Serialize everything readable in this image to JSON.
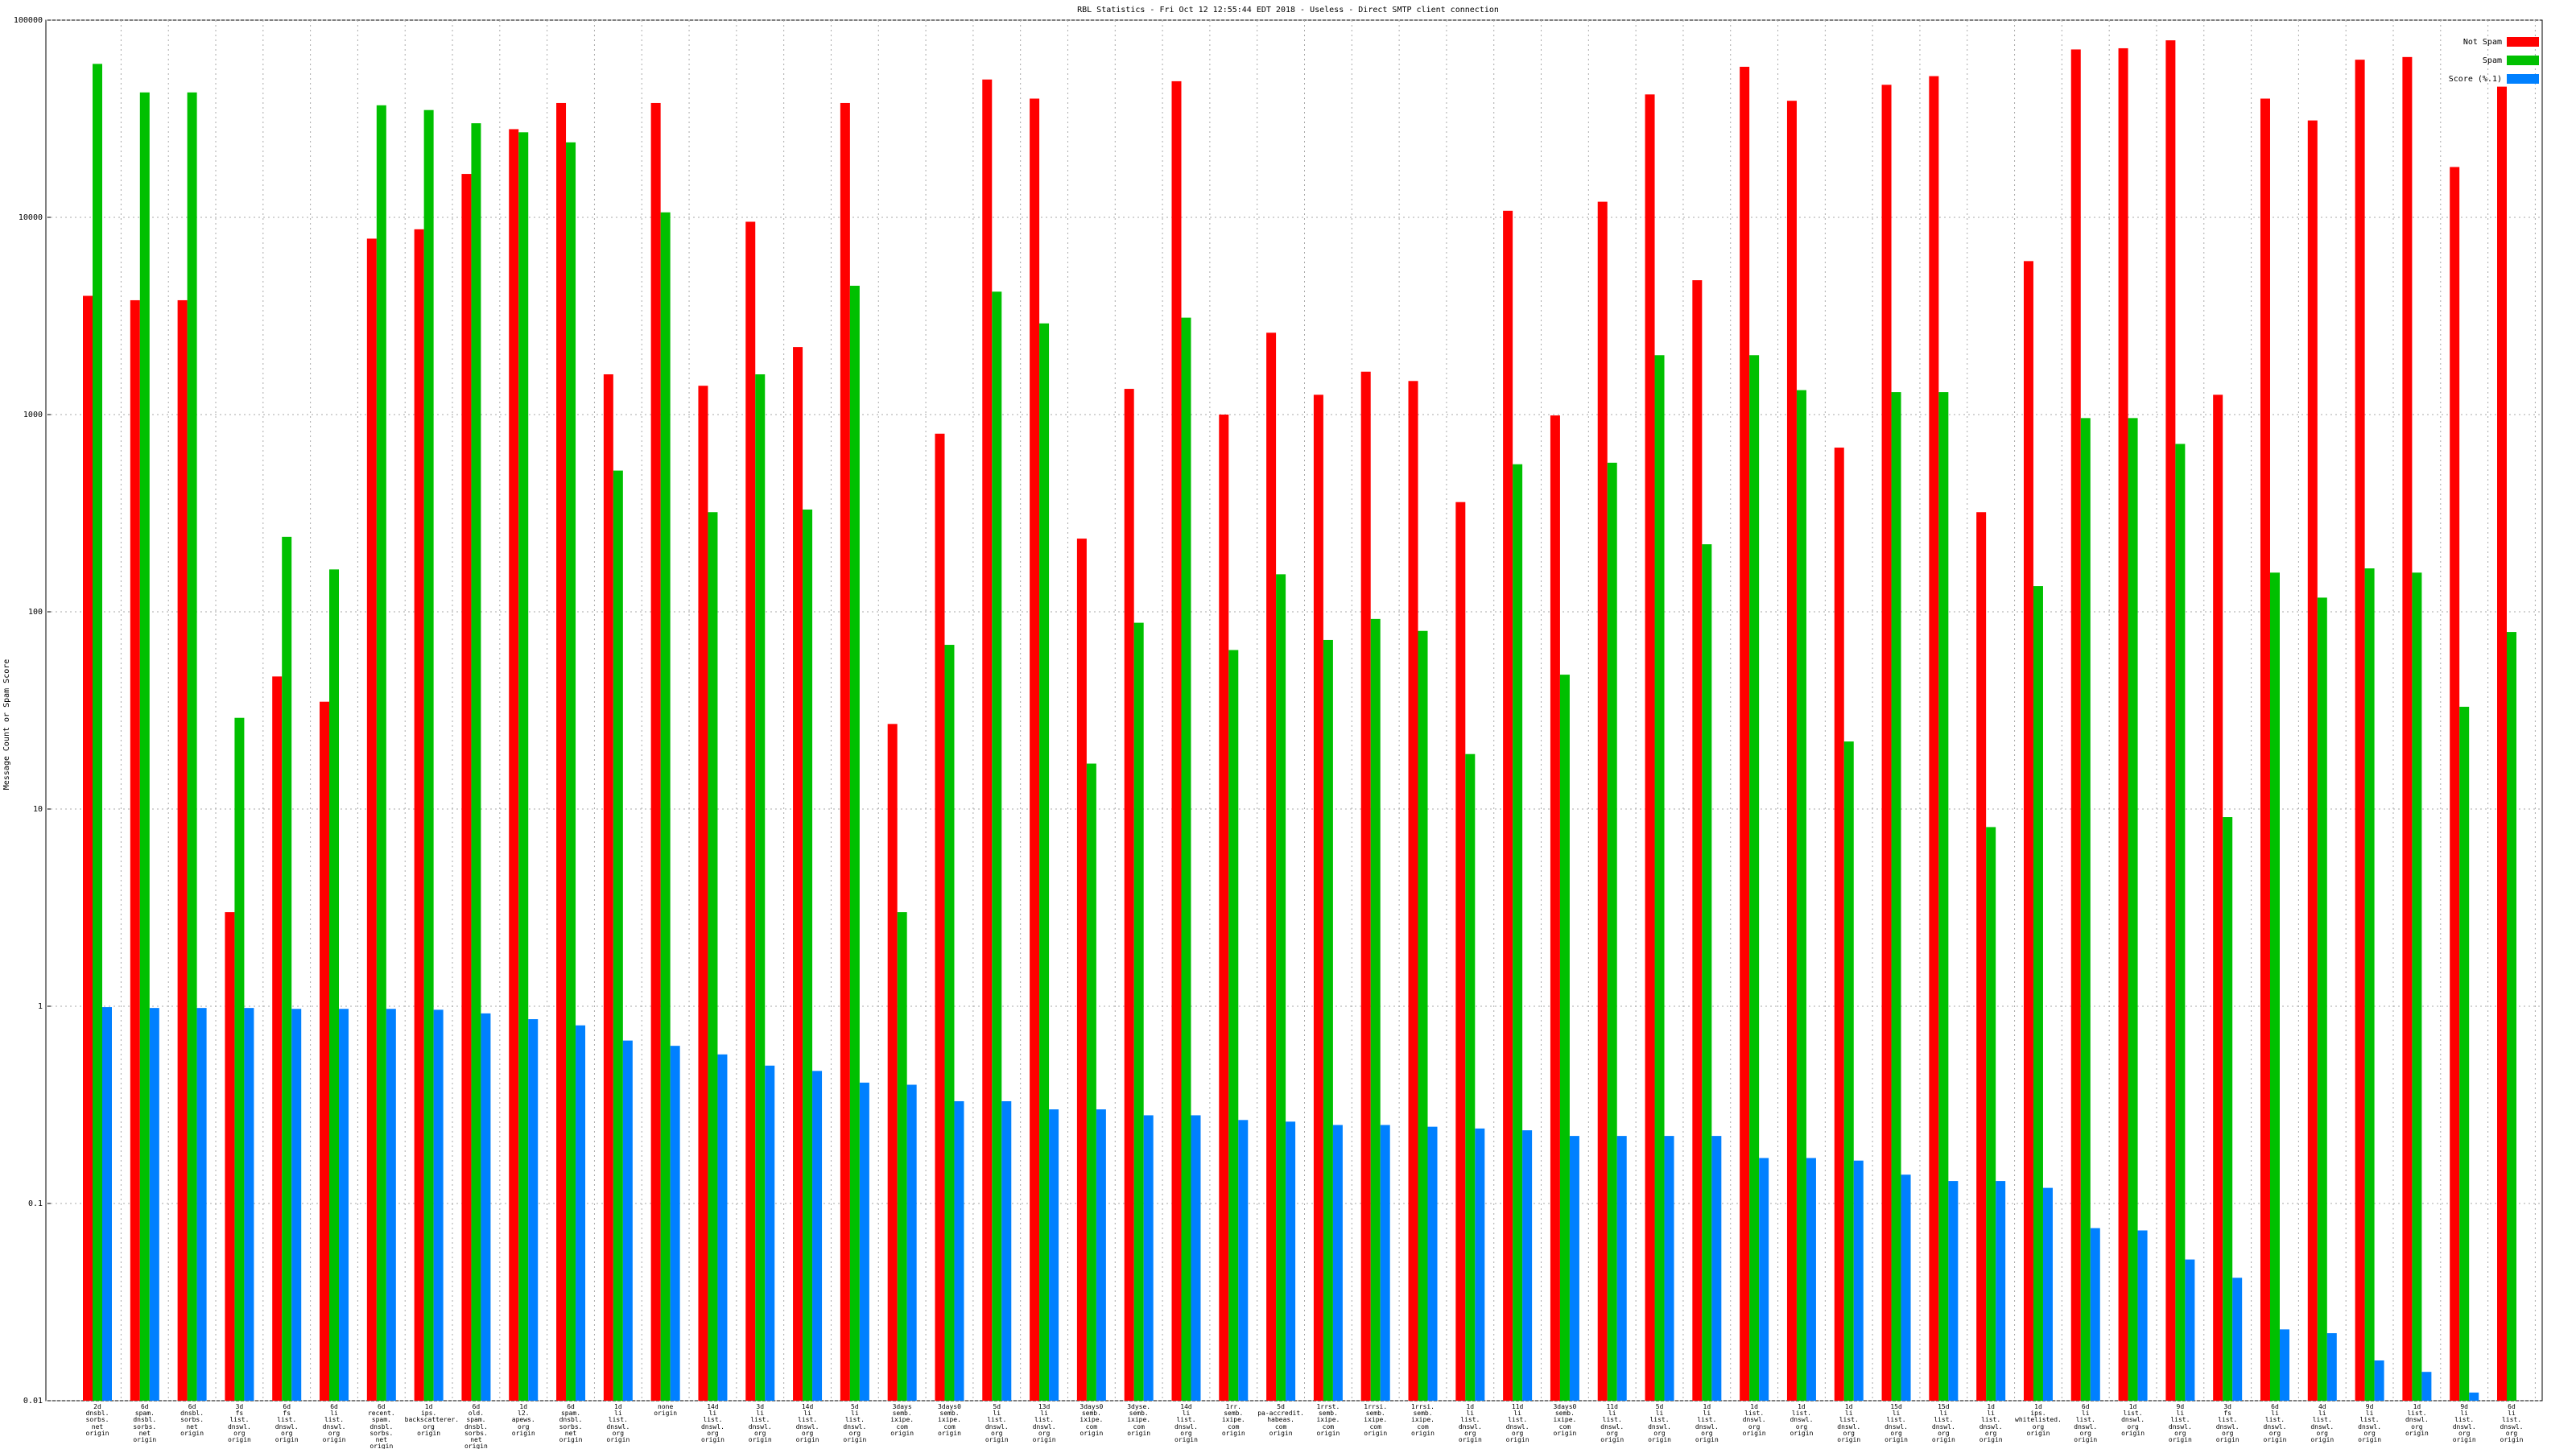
{
  "chart_data": {
    "type": "bar",
    "title": "RBL Statistics - Fri Oct 12 12:55:44 EDT 2018 - Useless - Direct SMTP client connection",
    "y_label": "Message Count or Spam Score",
    "log_scale": true,
    "grid": true,
    "legend_position": "top-right",
    "ylim": [
      0.01,
      100000
    ],
    "yticks": [
      0.01,
      0.1,
      1,
      10,
      100,
      1000,
      10000,
      100000
    ],
    "categories": [
      "2d\ndnsbl.\nsorbs.\nnet\norigin",
      "6d\nspam.\ndnsbl.\nsorbs.\nnet\norigin",
      "6d\ndnsbl.\nsorbs.\nnet\norigin",
      "3d\nfs\nlist.\ndnswl.\norg\norigin",
      "6d\nfs\nlist.\ndnswl.\norg\norigin",
      "6d\nli\nlist.\ndnswl.\norg\norigin",
      "6d\nrecent.\nspam.\ndnsbl.\nsorbs.\nnet\norigin",
      "1d\nips.\nbackscatterer.\norg\norigin",
      "6d\nold.\nspam.\ndnsbl.\nsorbs.\nnet\norigin",
      "1d\nl2.\napews.\norg\norigin",
      "6d\nspam.\ndnsbl.\nsorbs.\nnet\norigin",
      "1d\nli\nlist.\ndnswl.\norg\norigin",
      "none\norigin",
      "14d\nli\nlist.\ndnswl.\norg\norigin",
      "3d\nli\nlist.\ndnswl.\norg\norigin",
      "14d\nli\nlist.\ndnswl.\norg\norigin",
      "5d\nli\nlist.\ndnswl.\norg\norigin",
      "3days\nsemb.\nixipe.\ncom\norigin",
      "3days0\nsemb.\nixipe.\ncom\norigin",
      "5d\nli\nlist.\ndnswl.\norg\norigin",
      "13d\nli\nlist.\ndnswl.\norg\norigin",
      "3days0\nsemb.\nixipe.\ncom\norigin",
      "3dyse.\nsemb.\nixipe.\ncom\norigin",
      "14d\nli\nlist.\ndnswl.\norg\norigin",
      "1rr.\nsemb.\nixipe.\ncom\norigin",
      "5d\npa-accredit.\nhabeas.\ncom\norigin",
      "1rrst.\nsemb.\nixipe.\ncom\norigin",
      "1rrsi.\nsemb.\nixipe.\ncom\norigin",
      "1rrsi.\nsemb.\nixipe.\ncom\norigin",
      "1d\nli\nlist.\ndnswl.\norg\norigin",
      "11d\nli\nlist.\ndnswl.\norg\norigin",
      "3days0\nsemb.\nixipe.\ncom\norigin",
      "11d\nli\nlist.\ndnswl.\norg\norigin",
      "5d\nli\nlist.\ndnswl.\norg\norigin",
      "1d\nli\nlist.\ndnswl.\norg\norigin",
      "1d\nlist.\ndnswl.\norg\norigin",
      "1d\nlist.\ndnswl.\norg\norigin",
      "1d\nli\nlist.\ndnswl.\norg\norigin",
      "15d\nli\nlist.\ndnswl.\norg\norigin",
      "15d\nli\nlist.\ndnswl.\norg\norigin",
      "1d\nli\nlist.\ndnswl.\norg\norigin",
      "1d\nips.\nwhitelisted.\norg\norigin",
      "6d\nli\nlist.\ndnswl.\norg\norigin",
      "1d\nlist.\ndnswl.\norg\norigin",
      "9d\nli\nlist.\ndnswl.\norg\norigin",
      "3d\nfs\nlist.\ndnswl.\norg\norigin",
      "6d\nli\nlist.\ndnswl.\norg\norigin",
      "4d\nli\nlist.\ndnswl.\norg\norigin",
      "9d\nli\nlist.\ndnswl.\norg\norigin",
      "1d\nlist.\ndnswl.\norg\norigin",
      "9d\nli\nlist.\ndnswl.\norg\norigin",
      "6d\nli\nlist.\ndnswl.\norg\norigin"
    ],
    "series": [
      {
        "name": "Not Spam",
        "color": "#ff0000",
        "values": [
          4000,
          3800,
          3800,
          3,
          47,
          35,
          7800,
          8700,
          16600,
          28000,
          38000,
          1600,
          38000,
          1400,
          9500,
          2200,
          38000,
          27,
          800,
          50000,
          40000,
          235,
          1350,
          49000,
          1000,
          2600,
          1260,
          1650,
          1480,
          360,
          10800,
          990,
          12000,
          42000,
          4800,
          58000,
          39000,
          680,
          47000,
          52000,
          320,
          6000,
          71000,
          72000,
          79000,
          1260,
          40000,
          31000,
          63000,
          65000,
          18000,
          46000
        ]
      },
      {
        "name": "Spam",
        "color": "#00c000",
        "values": [
          60000,
          43000,
          43000,
          29,
          240,
          164,
          37000,
          35000,
          30000,
          27000,
          24000,
          520,
          10600,
          320,
          1600,
          330,
          4500,
          3,
          68,
          4200,
          2900,
          17,
          88,
          3100,
          64,
          155,
          72,
          92,
          80,
          19,
          560,
          48,
          570,
          2000,
          220,
          2000,
          1330,
          22,
          1300,
          1300,
          8.1,
          135,
          960,
          960,
          710,
          9.1,
          158,
          118,
          166,
          158,
          33,
          79
        ]
      },
      {
        "name": "Score (%.1)",
        "color": "#0080ff",
        "values": [
          0.99,
          0.98,
          0.98,
          0.98,
          0.97,
          0.97,
          0.97,
          0.96,
          0.92,
          0.86,
          0.8,
          0.67,
          0.63,
          0.57,
          0.5,
          0.47,
          0.41,
          0.4,
          0.33,
          0.33,
          0.3,
          0.3,
          0.28,
          0.28,
          0.265,
          0.26,
          0.25,
          0.25,
          0.245,
          0.24,
          0.235,
          0.22,
          0.22,
          0.22,
          0.22,
          0.17,
          0.17,
          0.165,
          0.14,
          0.13,
          0.13,
          0.12,
          0.075,
          0.073,
          0.052,
          0.042,
          0.023,
          0.022,
          0.016,
          0.014,
          0.011,
          0.01
        ]
      }
    ]
  }
}
